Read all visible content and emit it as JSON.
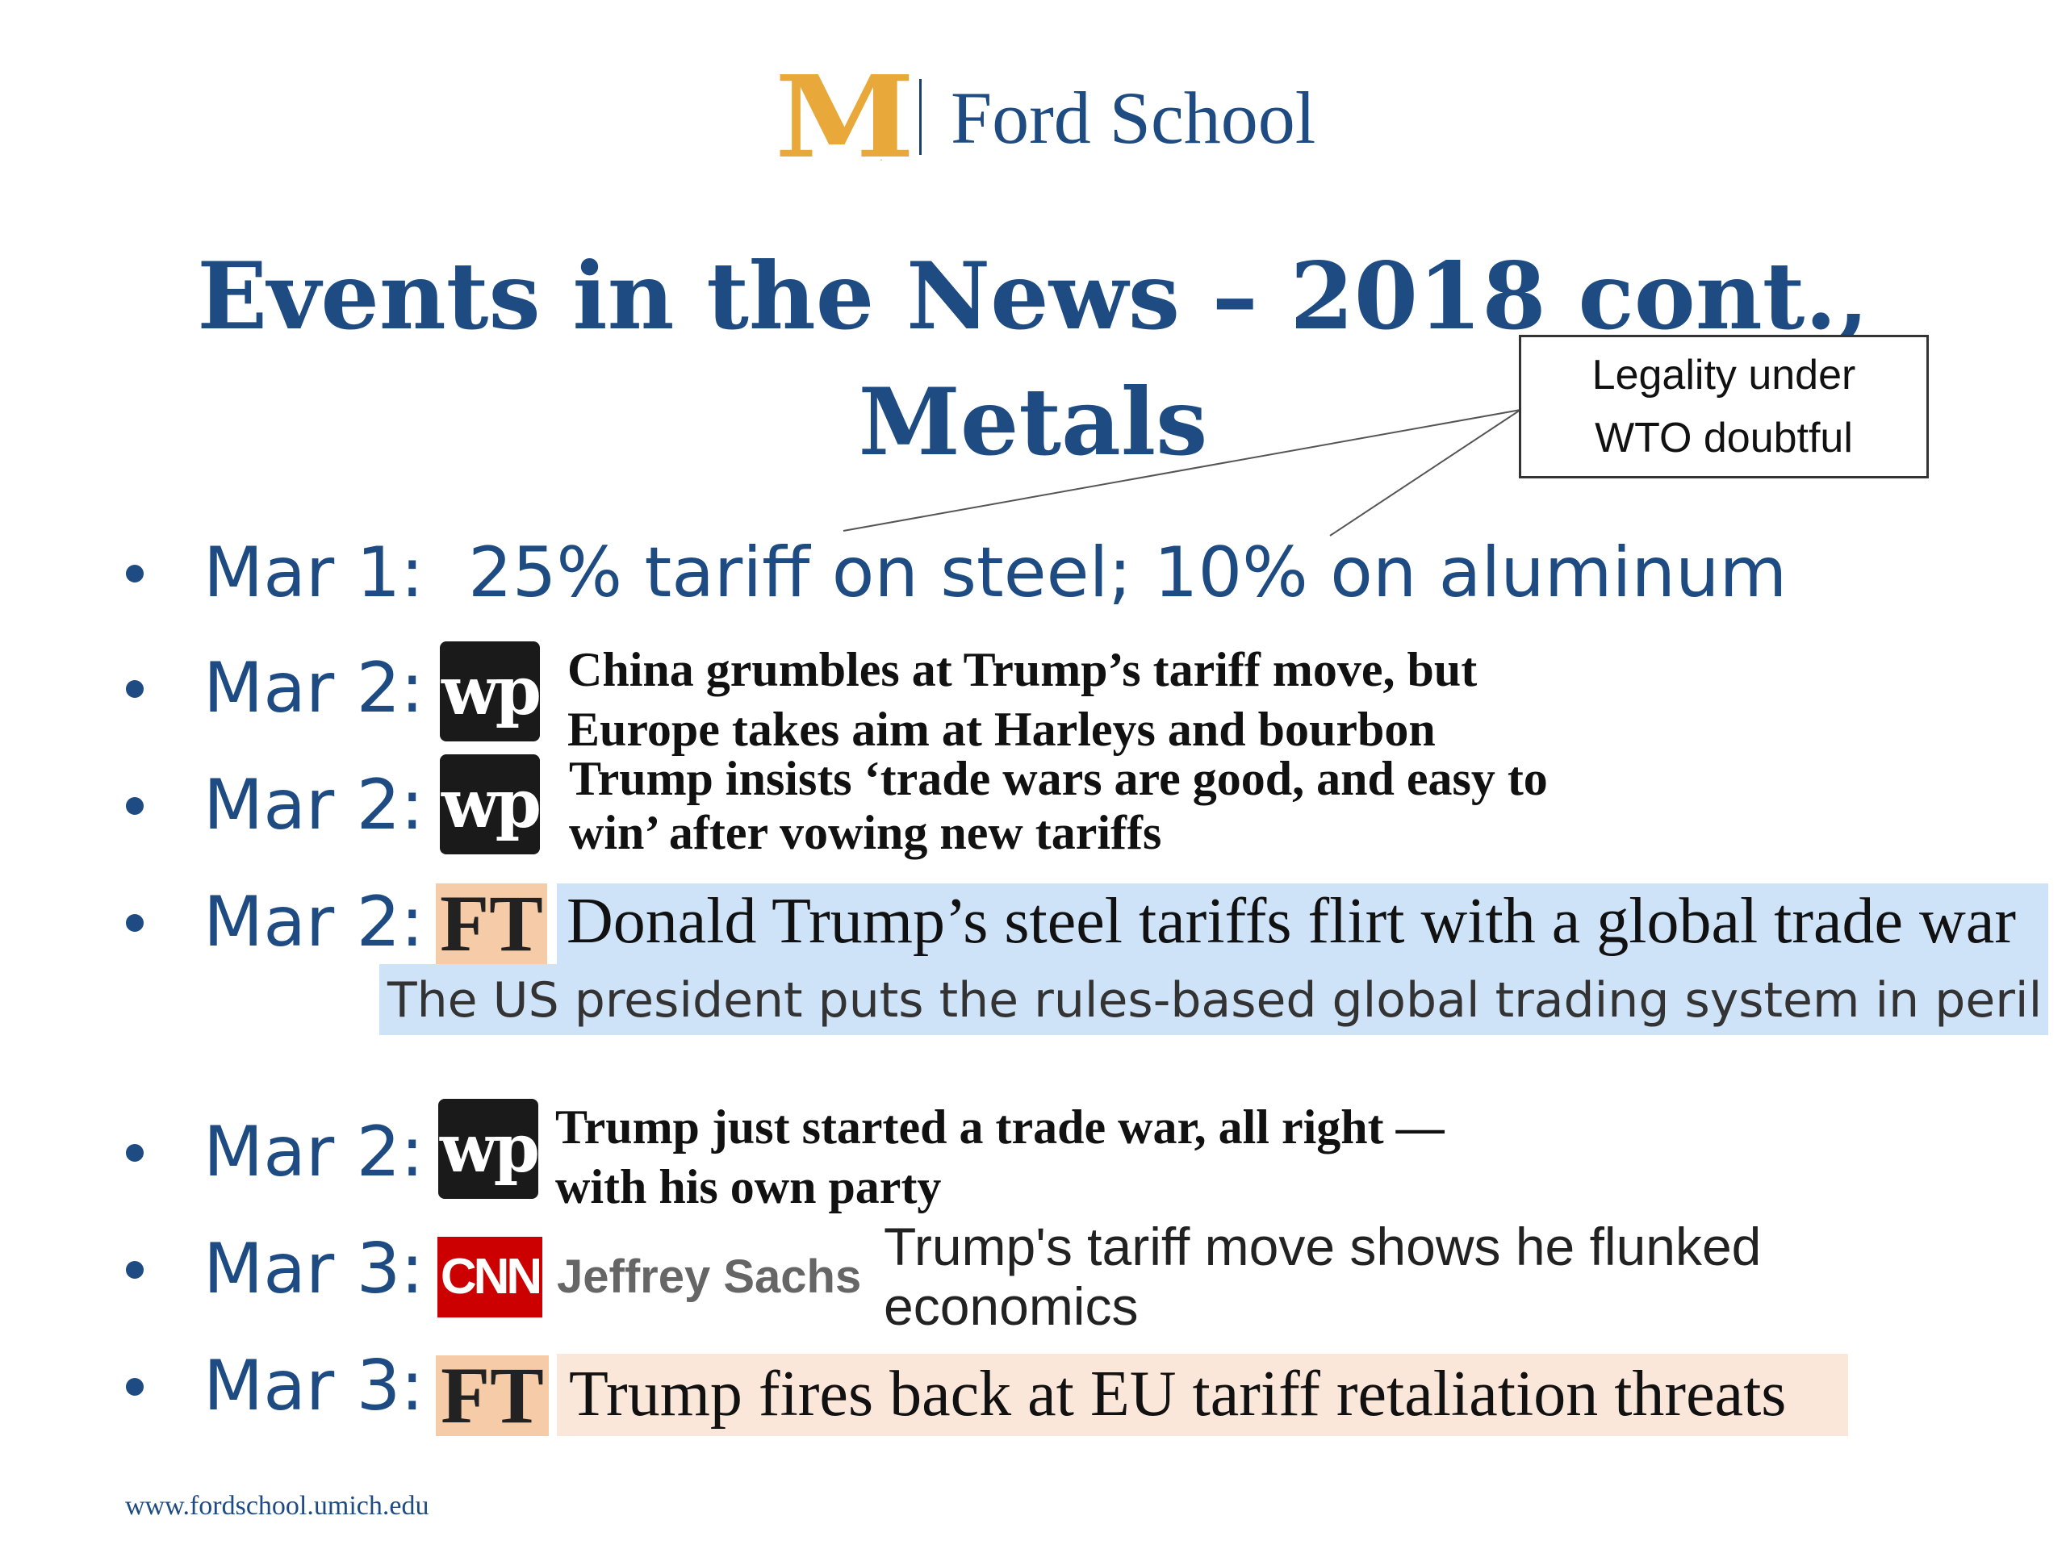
{
  "header": {
    "logo_letter": "M",
    "logo_mark": ".",
    "school_name": "Ford School"
  },
  "title": {
    "line1": "Events in the News – 2018 cont.,",
    "line2": "Metals"
  },
  "callout": {
    "line1": "Legality under",
    "line2": "WTO doubtful"
  },
  "events": [
    {
      "date": "Mar 1:",
      "text": "25% tariff on steel; 10% on aluminum"
    },
    {
      "date": "Mar 2:",
      "source": "wp",
      "source_mark": "wp",
      "headline_line1": "China grumbles at Trump’s tariff move, but",
      "headline_line2": "Europe takes aim at Harleys and bourbon"
    },
    {
      "date": "Mar 2:",
      "source": "wp",
      "source_mark": "wp",
      "headline_line1": "Trump insists ‘trade wars are good, and easy to",
      "headline_line2": "win’ after vowing new tariffs"
    },
    {
      "date": "Mar 2:",
      "source": "FT",
      "source_mark": "FT",
      "headline_line1": "Donald Trump’s steel tariffs flirt with a global trade war",
      "subheadline": "The US president puts the rules-based global trading system in peril"
    },
    {
      "date": "Mar 2:",
      "source": "wp",
      "source_mark": "wp",
      "headline_line1": "Trump just started a trade war, all right —",
      "headline_line2": "with his own party"
    },
    {
      "date": "Mar 3:",
      "source": "CNN",
      "source_mark": "CNN",
      "author": "Jeffrey Sachs",
      "headline_line1": "Trump's tariff move shows he flunked",
      "headline_line2": "economics"
    },
    {
      "date": "Mar 3:",
      "source": "FT",
      "source_mark": "FT",
      "headline_line1": "Trump fires back at EU tariff retaliation threats"
    }
  ],
  "footer": {
    "url": "www.fordschool.umich.edu"
  },
  "colors": {
    "navy": "#1E4B82",
    "maize": "#E9A93A",
    "ft_pink": "#F6CBA8",
    "cnn_red": "#CC0000",
    "highlight_blue": "#CFE3F8",
    "highlight_peach": "#FBE6DA"
  }
}
